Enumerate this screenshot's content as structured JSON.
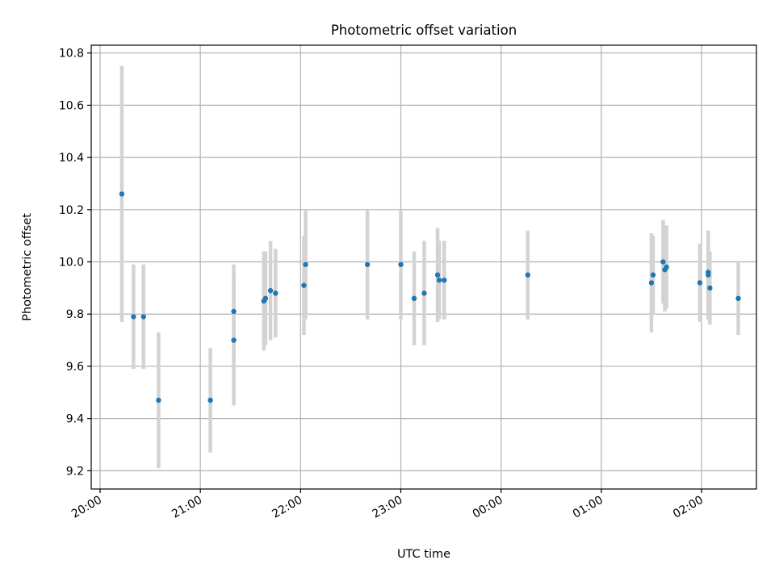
{
  "chart_data": {
    "type": "scatter",
    "title": "Photometric offset variation",
    "xlabel": "UTC time",
    "ylabel": "Photometric offset",
    "x_axis_kind": "time",
    "xlim": [
      "20:00",
      "02:40"
    ],
    "ylim": [
      9.13,
      10.83
    ],
    "x_tick_labels": [
      "20:00",
      "21:00",
      "22:00",
      "23:00",
      "00:00",
      "01:00",
      "02:00"
    ],
    "y_ticks": [
      9.2,
      9.4,
      9.6,
      9.8,
      10.0,
      10.2,
      10.4,
      10.6,
      10.8
    ],
    "y_tick_labels": [
      "9.2",
      "9.4",
      "9.6",
      "9.8",
      "10.0",
      "10.2",
      "10.4",
      "10.6",
      "10.8"
    ],
    "grid": true,
    "point_color": "#1f77b4",
    "errorbar_color": "#d3d3d3",
    "points": [
      {
        "t": "20:13",
        "y": 10.26,
        "err": 0.49
      },
      {
        "t": "20:20",
        "y": 9.79,
        "err": 0.2
      },
      {
        "t": "20:26",
        "y": 9.79,
        "err": 0.2
      },
      {
        "t": "20:35",
        "y": 9.47,
        "err": 0.26
      },
      {
        "t": "21:06",
        "y": 9.47,
        "err": 0.2
      },
      {
        "t": "21:20",
        "y": 9.7,
        "err": 0.25
      },
      {
        "t": "21:20",
        "y": 9.81,
        "err": 0.18
      },
      {
        "t": "21:38",
        "y": 9.85,
        "err": 0.19
      },
      {
        "t": "21:39",
        "y": 9.86,
        "err": 0.18
      },
      {
        "t": "21:42",
        "y": 9.89,
        "err": 0.19
      },
      {
        "t": "21:45",
        "y": 9.88,
        "err": 0.17
      },
      {
        "t": "22:02",
        "y": 9.91,
        "err": 0.19
      },
      {
        "t": "22:03",
        "y": 9.99,
        "err": 0.21
      },
      {
        "t": "22:40",
        "y": 9.99,
        "err": 0.21
      },
      {
        "t": "23:00",
        "y": 9.99,
        "err": 0.21
      },
      {
        "t": "23:08",
        "y": 9.86,
        "err": 0.18
      },
      {
        "t": "23:14",
        "y": 9.88,
        "err": 0.2
      },
      {
        "t": "23:22",
        "y": 9.95,
        "err": 0.18
      },
      {
        "t": "23:23",
        "y": 9.93,
        "err": 0.15
      },
      {
        "t": "23:26",
        "y": 9.93,
        "err": 0.15
      },
      {
        "t": "00:16",
        "y": 9.95,
        "err": 0.17
      },
      {
        "t": "01:30",
        "y": 9.92,
        "err": 0.19
      },
      {
        "t": "01:31",
        "y": 9.95,
        "err": 0.15
      },
      {
        "t": "01:37",
        "y": 10.0,
        "err": 0.16
      },
      {
        "t": "01:38",
        "y": 9.97,
        "err": 0.16
      },
      {
        "t": "01:39",
        "y": 9.98,
        "err": 0.16
      },
      {
        "t": "01:59",
        "y": 9.92,
        "err": 0.15
      },
      {
        "t": "02:04",
        "y": 9.95,
        "err": 0.17
      },
      {
        "t": "02:04",
        "y": 9.96,
        "err": 0.16
      },
      {
        "t": "02:05",
        "y": 9.9,
        "err": 0.14
      },
      {
        "t": "02:22",
        "y": 9.86,
        "err": 0.14
      }
    ]
  }
}
